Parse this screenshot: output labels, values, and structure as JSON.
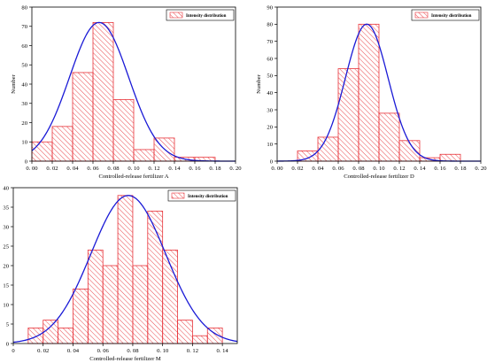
{
  "chart_data": [
    {
      "type": "bar",
      "subtype": "histogram-with-normal-fit",
      "xlabel": "Controlled-release fertilizer A",
      "ylabel": "Number",
      "legend": "Intensity distribution",
      "legend_position": "top-right",
      "xlim": [
        0,
        0.2
      ],
      "ylim": [
        0,
        80
      ],
      "xticks": [
        0,
        0.02,
        0.04,
        0.06,
        0.08,
        0.1,
        0.12,
        0.14,
        0.16,
        0.18,
        0.2
      ],
      "xtick_labels": [
        "0. 00",
        "0. 02",
        "0. 04",
        "0. 06",
        "0. 08",
        "0. 10",
        "0. 12",
        "0. 14",
        "0. 16",
        "0. 18",
        "0. 20"
      ],
      "yticks": [
        0,
        10,
        20,
        30,
        40,
        50,
        60,
        70,
        80
      ],
      "bins": [
        [
          0,
          0.02
        ],
        [
          0.02,
          0.04
        ],
        [
          0.04,
          0.06
        ],
        [
          0.06,
          0.08
        ],
        [
          0.08,
          0.1
        ],
        [
          0.1,
          0.12
        ],
        [
          0.12,
          0.14
        ],
        [
          0.14,
          0.16
        ],
        [
          0.16,
          0.18
        ]
      ],
      "values": [
        10,
        18,
        46,
        72,
        32,
        6,
        12,
        2,
        2
      ],
      "fit": {
        "peak_x": 0.066,
        "peak_y": 72,
        "sigma": 0.029
      },
      "bar_color": "#e8343a",
      "curve_color": "#1a1ad6"
    },
    {
      "type": "bar",
      "subtype": "histogram-with-normal-fit",
      "xlabel": "Controlled-release fertilizer D",
      "ylabel": "Number",
      "legend": "Intensity distribution",
      "legend_position": "top-right",
      "xlim": [
        0,
        0.2
      ],
      "ylim": [
        0,
        90
      ],
      "xticks": [
        0,
        0.02,
        0.04,
        0.06,
        0.08,
        0.1,
        0.12,
        0.14,
        0.16,
        0.18,
        0.2
      ],
      "xtick_labels": [
        "0. 00",
        "0. 02",
        "0. 04",
        "0. 06",
        "0. 08",
        "0. 10",
        "0. 12",
        "0. 14",
        "0. 16",
        "0. 18",
        "0. 20"
      ],
      "yticks": [
        0,
        10,
        20,
        30,
        40,
        50,
        60,
        70,
        80,
        90
      ],
      "bins": [
        [
          0.02,
          0.04
        ],
        [
          0.04,
          0.06
        ],
        [
          0.06,
          0.08
        ],
        [
          0.08,
          0.1
        ],
        [
          0.1,
          0.12
        ],
        [
          0.12,
          0.14
        ],
        [
          0.14,
          0.16
        ],
        [
          0.16,
          0.18
        ]
      ],
      "values": [
        6,
        14,
        54,
        80,
        28,
        12,
        2,
        4
      ],
      "fit": {
        "peak_x": 0.088,
        "peak_y": 80,
        "sigma": 0.021
      },
      "bar_color": "#e8343a",
      "curve_color": "#1a1ad6"
    },
    {
      "type": "bar",
      "subtype": "histogram-with-normal-fit",
      "xlabel": "Controlled-release fertilizer M",
      "ylabel": "Number",
      "legend": "Intensity distribution",
      "legend_position": "top-right",
      "xlim": [
        0,
        0.15
      ],
      "ylim": [
        0,
        40
      ],
      "xticks": [
        0,
        0.02,
        0.04,
        0.06,
        0.08,
        0.1,
        0.12,
        0.14
      ],
      "xtick_labels": [
        "0",
        "0. 02",
        "0. 04",
        "0. 06",
        "0. 08",
        "0. 10",
        "0. 12",
        "0. 14"
      ],
      "yticks": [
        0,
        5,
        10,
        15,
        20,
        25,
        30,
        35,
        40
      ],
      "bins": [
        [
          0.01,
          0.02
        ],
        [
          0.02,
          0.03
        ],
        [
          0.03,
          0.04
        ],
        [
          0.04,
          0.05
        ],
        [
          0.05,
          0.06
        ],
        [
          0.06,
          0.07
        ],
        [
          0.07,
          0.08
        ],
        [
          0.08,
          0.09
        ],
        [
          0.09,
          0.1
        ],
        [
          0.1,
          0.11
        ],
        [
          0.11,
          0.12
        ],
        [
          0.12,
          0.13
        ],
        [
          0.13,
          0.14
        ]
      ],
      "values": [
        4,
        6,
        4,
        14,
        24,
        20,
        38,
        20,
        34,
        24,
        6,
        2,
        4
      ],
      "fit": {
        "peak_x": 0.077,
        "peak_y": 38,
        "sigma": 0.025
      },
      "bar_color": "#e8343a",
      "curve_color": "#1a1ad6"
    }
  ]
}
